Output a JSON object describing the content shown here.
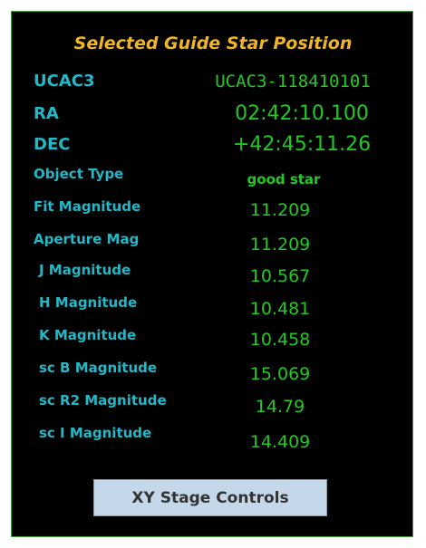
{
  "panel": {
    "title": "Selected Guide Star Position",
    "rows": [
      {
        "label": "UCAC3",
        "value": "UCAC3-118410101"
      },
      {
        "label": "RA",
        "value": "02:42:10.100"
      },
      {
        "label": "DEC",
        "value": "+42:45:11.26"
      },
      {
        "label": "Object Type",
        "value": "good star"
      },
      {
        "label": "Fit Magnitude",
        "value": "11.209"
      },
      {
        "label": "Aperture Mag",
        "value": "11.209"
      },
      {
        "label": "J Magnitude",
        "value": "10.567"
      },
      {
        "label": "H Magnitude",
        "value": "10.481"
      },
      {
        "label": "K Magnitude",
        "value": "10.458"
      },
      {
        "label": "sc B Magnitude",
        "value": "15.069"
      },
      {
        "label": "sc R2 Magnitude",
        "value": "14.79"
      },
      {
        "label": "sc I Magnitude",
        "value": "14.409"
      }
    ],
    "button": "XY Stage Controls"
  }
}
